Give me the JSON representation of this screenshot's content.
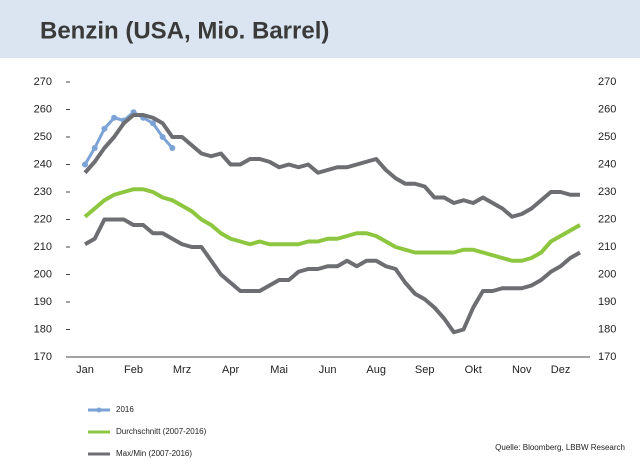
{
  "chart_data": {
    "type": "line",
    "title": "Benzin (USA, Mio. Barrel)",
    "categories": [
      "Jan",
      null,
      null,
      null,
      null,
      "Feb",
      null,
      null,
      null,
      null,
      "Mrz",
      null,
      null,
      null,
      null,
      "Apr",
      null,
      null,
      null,
      null,
      "Mai",
      null,
      null,
      null,
      null,
      "Jun",
      null,
      null,
      null,
      null,
      "Aug",
      null,
      null,
      null,
      null,
      "Sep",
      null,
      null,
      null,
      null,
      "Okt",
      null,
      null,
      null,
      null,
      "Nov",
      null,
      null,
      null,
      "Dez",
      null,
      null
    ],
    "series": [
      {
        "name": "2016",
        "color": "#7ba3d6",
        "markers": true,
        "values": [
          240,
          246,
          253,
          257,
          256,
          259,
          257,
          255,
          250,
          246,
          null,
          null,
          null,
          null,
          null,
          null,
          null,
          null,
          null,
          null,
          null,
          null,
          null,
          null,
          null,
          null,
          null,
          null,
          null,
          null,
          null,
          null,
          null,
          null,
          null,
          null,
          null,
          null,
          null,
          null,
          null,
          null,
          null,
          null,
          null,
          null,
          null,
          null,
          null,
          null,
          null,
          null
        ]
      },
      {
        "name": "Durchschnitt (2007-2016)",
        "color": "#8dc63f",
        "values": [
          221,
          224,
          227,
          229,
          230,
          231,
          231,
          230,
          228,
          227,
          225,
          223,
          220,
          218,
          215,
          213,
          212,
          211,
          212,
          211,
          211,
          211,
          211,
          212,
          212,
          213,
          213,
          214,
          215,
          215,
          214,
          212,
          210,
          209,
          208,
          208,
          208,
          208,
          208,
          209,
          209,
          208,
          207,
          206,
          205,
          205,
          206,
          208,
          212,
          214,
          216,
          218
        ]
      },
      {
        "name": "Max/Min (2007-2016)",
        "color": "#6d6e71",
        "values": [
          237,
          241,
          246,
          250,
          255,
          258,
          258,
          257,
          255,
          250,
          250,
          247,
          244,
          243,
          244,
          240,
          240,
          242,
          242,
          241,
          239,
          240,
          239,
          240,
          237,
          238,
          239,
          239,
          240,
          241,
          242,
          238,
          235,
          233,
          233,
          232,
          228,
          228,
          226,
          227,
          226,
          228,
          226,
          224,
          221,
          222,
          224,
          227,
          230,
          230,
          229,
          229
        ]
      },
      {
        "color": "#6d6e71",
        "values": [
          211,
          213,
          220,
          220,
          220,
          218,
          218,
          215,
          215,
          213,
          211,
          210,
          210,
          205,
          200,
          197,
          194,
          194,
          194,
          196,
          198,
          198,
          201,
          202,
          202,
          203,
          203,
          205,
          203,
          205,
          205,
          203,
          202,
          197,
          193,
          191,
          188,
          184,
          179,
          180,
          188,
          194,
          194,
          195,
          195,
          195,
          196,
          198,
          201,
          203,
          206,
          208
        ]
      }
    ],
    "ylim": [
      170,
      270
    ],
    "yticks": [
      170,
      180,
      190,
      200,
      210,
      220,
      230,
      240,
      250,
      260,
      270
    ],
    "source": "Quelle: Bloomberg, LBBW Research"
  }
}
